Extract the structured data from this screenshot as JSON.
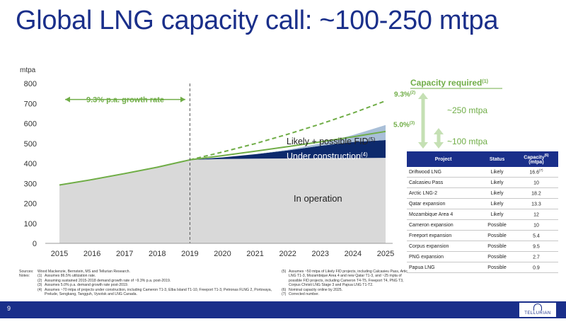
{
  "page": {
    "title": "Global LNG capacity call: ~100-250 mtpa",
    "page_number": "9",
    "logo_text": "TELLURIAN"
  },
  "chart_data": {
    "type": "area",
    "y_axis_unit": "mtpa",
    "x": [
      2015,
      2016,
      2017,
      2018,
      2019,
      2020,
      2021,
      2022,
      2023,
      2024,
      2025
    ],
    "ylim": [
      0,
      800
    ],
    "yticks": [
      0,
      100,
      200,
      300,
      400,
      500,
      600,
      700,
      800
    ],
    "grid": false,
    "series": [
      {
        "name": "In operation",
        "values": [
          292,
          315,
          345,
          378,
          418,
          422,
          424,
          425,
          426,
          427,
          428
        ],
        "color": "#d9d9d9"
      },
      {
        "name": "Under construction",
        "values": [
          0,
          0,
          0,
          0,
          0,
          8,
          22,
          40,
          62,
          80,
          89
        ],
        "color": "#0d2a6c"
      },
      {
        "name": "Likely + possible FID",
        "values": [
          0,
          0,
          0,
          0,
          0,
          0,
          0,
          3,
          12,
          35,
          75
        ],
        "color": "#a9bfd8"
      }
    ],
    "lines": [
      {
        "name": "9.3% p.a. growth rate",
        "style": "solid",
        "color": "#70ad47",
        "x": [
          2015,
          2016,
          2017,
          2018,
          2019
        ],
        "values": [
          292,
          319,
          349,
          381,
          418
        ]
      },
      {
        "name": "9.3%",
        "style": "dashed",
        "color": "#70ad47",
        "x": [
          2019,
          2020,
          2021,
          2022,
          2023,
          2024,
          2025
        ],
        "values": [
          418,
          457,
          499,
          546,
          597,
          652,
          713
        ]
      },
      {
        "name": "5.0%",
        "style": "solid",
        "color": "#70ad47",
        "x": [
          2019,
          2020,
          2021,
          2022,
          2023,
          2024,
          2025
        ],
        "values": [
          418,
          439,
          461,
          484,
          508,
          533,
          560
        ]
      }
    ],
    "annotations": {
      "growth_rate_label": "9.3% p.a. growth rate",
      "rate_high": "9.3%",
      "rate_high_sup": "(2)",
      "rate_low": "5.0%",
      "rate_low_sup": "(3)",
      "area_likely": "Likely + possible FID",
      "area_likely_sup": "(5)",
      "area_construction": "Under construction",
      "area_construction_sup": "(4)",
      "area_operation": "In operation",
      "capacity_required": "Capacity required",
      "capacity_required_sup": "(1)",
      "capacity_high": "~250 mtpa",
      "capacity_low": "~100 mtpa"
    }
  },
  "table": {
    "headers": [
      "Project",
      "Status",
      "Capacity",
      "(mtpa)"
    ],
    "header_sup": "(6)",
    "rows": [
      {
        "project": "Driftwood LNG",
        "status": "Likely",
        "capacity": "16.6",
        "sup": "(7)"
      },
      {
        "project": "Calcasieu Pass",
        "status": "Likely",
        "capacity": "10",
        "sup": ""
      },
      {
        "project": "Arctic LNG-2",
        "status": "Likely",
        "capacity": "18.2",
        "sup": ""
      },
      {
        "project": "Qatar expansion",
        "status": "Likely",
        "capacity": "13.3",
        "sup": ""
      },
      {
        "project": "Mozambique Area 4",
        "status": "Likely",
        "capacity": "12",
        "sup": ""
      },
      {
        "project": "Cameron expansion",
        "status": "Possible",
        "capacity": "10",
        "sup": ""
      },
      {
        "project": "Freeport expansion",
        "status": "Possible",
        "capacity": "5.4",
        "sup": ""
      },
      {
        "project": "Corpus expansion",
        "status": "Possible",
        "capacity": "9.5",
        "sup": ""
      },
      {
        "project": "PNG expansion",
        "status": "Possible",
        "capacity": "2.7",
        "sup": ""
      },
      {
        "project": "Papua LNG",
        "status": "Possible",
        "capacity": "0.9",
        "sup": ""
      }
    ]
  },
  "notes": {
    "sources_label": "Sources:",
    "sources_text": "Wood Mackenzie, Bernstein, MS and Tellurian Research.",
    "notes_label": "Notes:",
    "left": [
      {
        "num": "(1)",
        "text": "Assumes 86.5% utilization rate."
      },
      {
        "num": "(2)",
        "text": "Assuming sustained 2015-2018 demand growth rate of ~9.3% p.a. post-2019."
      },
      {
        "num": "(3)",
        "text": "Assumes 5.0% p.a. demand growth rate post-2019."
      },
      {
        "num": "(4)",
        "text": "Assumes ~70 mtpa of projects under construction, including Cameron T1-3, Elba Island T1-10, Freeport T1-3, Petronas FLNG 2, Portovaya, Prelude, Sengkang, Tangguh, Vysotsk and LNG Canada."
      }
    ],
    "right": [
      {
        "num": "(5)",
        "text": "Assumes ~50 mtpa of Likely FID projects, including Calcasieu Pass, Artic LNG T1-3, Mozambique Area 4 and new Qatar T1-3, and ~25 mpta of possible FID projects, including Cameron T4-T5, Freeport T4, PNG T3, Corpus Christi LNG Stage 3 and Papua LNG T1-T2."
      },
      {
        "num": "(6)",
        "text": "Nominal capacity online by 2025."
      },
      {
        "num": "(7)",
        "text": "Corrected number."
      }
    ]
  }
}
